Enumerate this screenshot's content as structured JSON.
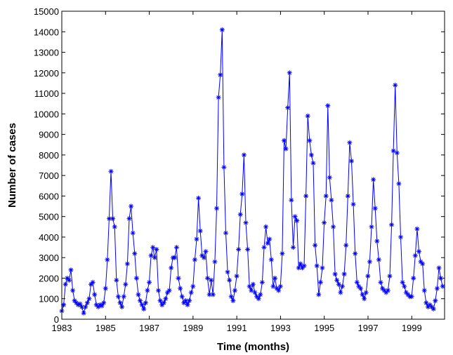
{
  "chart_data": {
    "type": "line",
    "title": "",
    "xlabel": "Time (months)",
    "ylabel": "Number of cases",
    "xlim": [
      1983,
      2000.5
    ],
    "ylim": [
      0,
      15000
    ],
    "x_ticks": [
      "1983",
      "1985",
      "1987",
      "1989",
      "1991",
      "1993",
      "1995",
      "1997",
      "1999"
    ],
    "y_ticks": [
      "0",
      "1000",
      "2000",
      "3000",
      "4000",
      "5000",
      "6000",
      "7000",
      "8000",
      "9000",
      "10000",
      "11000",
      "12000",
      "13000",
      "14000",
      "15000"
    ],
    "grid": false,
    "legend": "none",
    "series_color": "#0000ff",
    "marker": "star",
    "x_start": 1983.0,
    "x_step": 0.0833,
    "values": [
      400,
      700,
      1700,
      2000,
      1900,
      2400,
      1400,
      900,
      800,
      700,
      750,
      600,
      300,
      600,
      800,
      1000,
      1700,
      1800,
      1200,
      700,
      600,
      700,
      650,
      800,
      1500,
      2900,
      4900,
      7200,
      4900,
      4500,
      1900,
      1100,
      800,
      600,
      1100,
      1700,
      2700,
      4900,
      5500,
      4200,
      3200,
      2000,
      1200,
      900,
      700,
      500,
      800,
      1400,
      1800,
      3100,
      3500,
      3000,
      3400,
      1400,
      900,
      700,
      800,
      1000,
      1300,
      1400,
      2500,
      3000,
      3000,
      3500,
      2000,
      1500,
      1100,
      800,
      900,
      700,
      900,
      1300,
      1600,
      2900,
      3900,
      5900,
      4300,
      3100,
      3000,
      3300,
      2000,
      1200,
      1900,
      1200,
      2800,
      5400,
      10800,
      11900,
      14100,
      7400,
      4200,
      2300,
      1900,
      1100,
      900,
      1400,
      2100,
      3400,
      5100,
      6100,
      8000,
      4700,
      3400,
      1600,
      1400,
      1700,
      1300,
      1100,
      1000,
      1200,
      1800,
      3500,
      4500,
      3700,
      3900,
      2900,
      1600,
      2000,
      1500,
      1400,
      1600,
      3200,
      8700,
      8300,
      10300,
      12000,
      5800,
      3500,
      5000,
      4800,
      2500,
      2700,
      2500,
      2600,
      6000,
      9900,
      8700,
      8000,
      7600,
      3600,
      2600,
      1200,
      1800,
      2500,
      4700,
      6000,
      10400,
      6900,
      5800,
      4500,
      2200,
      1900,
      1700,
      1300,
      1600,
      2200,
      3600,
      6000,
      8600,
      7700,
      5600,
      3200,
      1800,
      1600,
      1500,
      1200,
      1000,
      1300,
      2100,
      2800,
      4500,
      6800,
      5400,
      3800,
      2900,
      1800,
      1500,
      1400,
      1300,
      1400,
      2100,
      4600,
      8200,
      11400,
      8100,
      6600,
      4000,
      1800,
      1600,
      1300,
      1200,
      1100,
      1100,
      2000,
      3100,
      4400,
      3300,
      2800,
      2700,
      1400,
      800,
      600,
      700,
      600,
      500,
      900,
      1500,
      2500,
      2000,
      1600
    ]
  }
}
